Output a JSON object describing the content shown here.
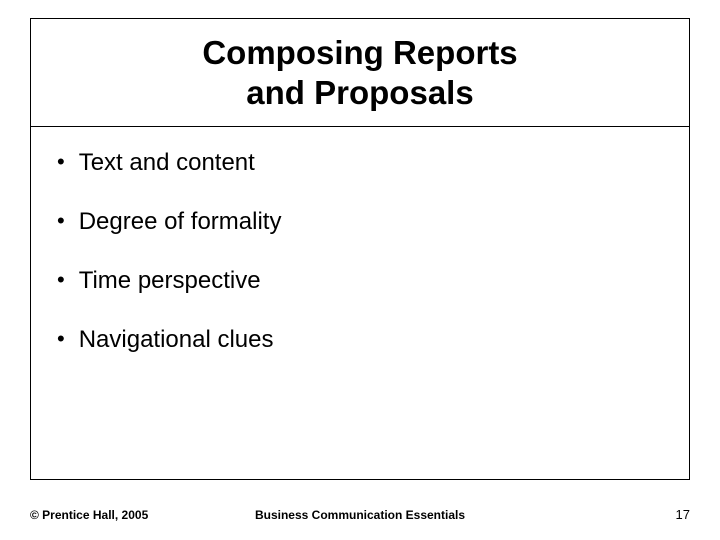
{
  "title_line1": "Composing Reports",
  "title_line2": "and Proposals",
  "bullets": [
    "Text and content",
    "Degree of formality",
    "Time perspective",
    "Navigational clues"
  ],
  "footer": {
    "copyright": "© Prentice Hall, 2005",
    "center": "Business Communication Essentials",
    "page": "17"
  },
  "colors": {
    "background": "#ffffff",
    "text": "#000000",
    "border": "#000000"
  },
  "fonts": {
    "title_size": 33,
    "bullet_size": 24,
    "footer_size": 12
  }
}
